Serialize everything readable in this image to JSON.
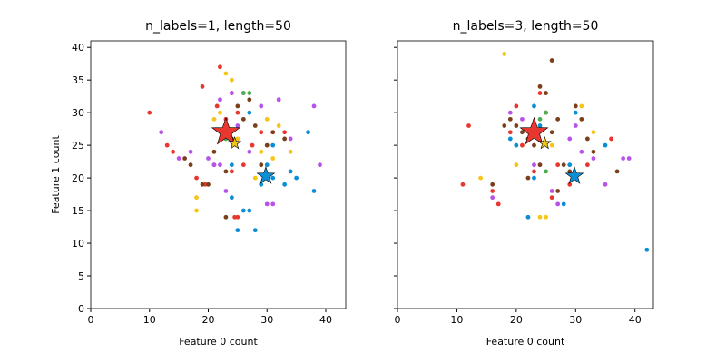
{
  "chart_data": [
    {
      "type": "scatter",
      "title": "n_labels=1, length=50",
      "xlabel": "Feature 0 count",
      "ylabel": "Feature 1 count",
      "xlim": [
        0,
        43.4
      ],
      "ylim": [
        0,
        41
      ],
      "xticks": [
        0,
        10,
        20,
        30,
        40
      ],
      "yticks": [
        0,
        5,
        10,
        15,
        20,
        25,
        30,
        35,
        40
      ],
      "yticklabels": true,
      "series": [
        {
          "color": "#e8372f",
          "marker": "dot",
          "x": [
            22,
            19,
            10,
            13,
            14,
            19.5,
            24,
            26,
            27.5,
            25,
            23,
            21,
            18,
            29,
            31,
            24.5,
            25,
            33,
            21.5,
            24
          ],
          "y": [
            37,
            34,
            30,
            25,
            24,
            19,
            21,
            22,
            25,
            30,
            29,
            22,
            20,
            27,
            27,
            14,
            14,
            27,
            31,
            33
          ]
        },
        {
          "color": "#f5c518",
          "marker": "dot",
          "x": [
            23,
            24,
            18,
            18,
            22,
            30,
            31,
            25,
            34,
            29,
            28,
            32,
            21
          ],
          "y": [
            36,
            35,
            17,
            15,
            30,
            29,
            23,
            26,
            24,
            24,
            20,
            28,
            29
          ]
        },
        {
          "color": "#b753e8",
          "marker": "dot",
          "x": [
            12,
            15,
            17,
            21,
            22,
            26,
            29,
            32,
            38,
            39,
            31,
            27,
            24,
            25,
            20,
            30,
            23,
            22,
            34
          ],
          "y": [
            27,
            23,
            24,
            22,
            32,
            33,
            31,
            32,
            31,
            22,
            16,
            24,
            33,
            28,
            23,
            16,
            18,
            22,
            26
          ]
        },
        {
          "color": "#7b3f1b",
          "marker": "dot",
          "x": [
            16,
            17,
            20,
            23,
            24,
            25,
            27,
            28,
            29,
            33,
            19,
            21,
            26,
            30,
            31,
            23
          ],
          "y": [
            23,
            22,
            19,
            14,
            26,
            31,
            32,
            28,
            22,
            26,
            19,
            24,
            29,
            25,
            27,
            21
          ]
        },
        {
          "color": "#0a8fd6",
          "marker": "dot",
          "x": [
            24,
            25,
            26,
            27,
            28,
            30,
            31,
            33,
            35,
            37,
            38,
            34,
            31,
            29,
            24,
            27
          ],
          "y": [
            17,
            12,
            15,
            15,
            12,
            22,
            25,
            19,
            20,
            27,
            18,
            21,
            20,
            19,
            22,
            30
          ]
        },
        {
          "color": "#4caf50",
          "marker": "dot",
          "x": [
            26,
            27,
            23
          ],
          "y": [
            33,
            33,
            26
          ]
        },
        {
          "color": "#e8372f",
          "marker": "star",
          "marker_size": 16,
          "x": [
            23
          ],
          "y": [
            27
          ]
        },
        {
          "color": "#f5c518",
          "marker": "star",
          "marker_size": 7,
          "x": [
            24.5
          ],
          "y": [
            25.3
          ]
        },
        {
          "color": "#0a8fd6",
          "marker": "star",
          "marker_size": 10,
          "x": [
            29.8
          ],
          "y": [
            20.3
          ]
        }
      ]
    },
    {
      "type": "scatter",
      "title": "n_labels=3, length=50",
      "xlabel": "Feature 0 count",
      "xlim": [
        0,
        43.1
      ],
      "ylim": [
        0,
        41
      ],
      "xticks": [
        0,
        10,
        20,
        30,
        40
      ],
      "yticks": [
        0,
        5,
        10,
        15,
        20,
        25,
        30,
        35,
        40
      ],
      "yticklabels": false,
      "series": [
        {
          "color": "#e8372f",
          "marker": "dot",
          "x": [
            11,
            12,
            16,
            17,
            19,
            21,
            24,
            26,
            27,
            23,
            29,
            32,
            36,
            20,
            25
          ],
          "y": [
            19,
            28,
            18,
            16,
            27,
            25,
            33,
            17,
            22,
            21,
            19,
            22,
            26,
            31,
            30
          ]
        },
        {
          "color": "#f5c518",
          "marker": "dot",
          "x": [
            14,
            18,
            22,
            24,
            25,
            26,
            33,
            20,
            31
          ],
          "y": [
            20,
            39,
            14,
            14,
            14,
            25,
            27,
            22,
            31
          ]
        },
        {
          "color": "#b753e8",
          "marker": "dot",
          "x": [
            16,
            19,
            21,
            23,
            27,
            29,
            33,
            38,
            39,
            30,
            35,
            26,
            31
          ],
          "y": [
            17,
            30,
            29,
            22,
            16,
            26,
            23,
            23,
            23,
            28,
            19,
            18,
            24
          ]
        },
        {
          "color": "#7b3f1b",
          "marker": "dot",
          "x": [
            16,
            19,
            20,
            21,
            22,
            23,
            24,
            25,
            26,
            27,
            28,
            29,
            30,
            31,
            32,
            33,
            37,
            22,
            18,
            26,
            27,
            24
          ],
          "y": [
            19,
            29,
            28,
            27,
            26,
            25,
            34,
            33,
            38,
            29,
            22,
            21,
            31,
            29,
            26,
            24,
            21,
            20,
            28,
            27,
            18,
            22
          ]
        },
        {
          "color": "#0a8fd6",
          "marker": "dot",
          "x": [
            19,
            20,
            22,
            23,
            24,
            28,
            29,
            30,
            35,
            42,
            23
          ],
          "y": [
            26,
            25,
            14,
            20,
            28,
            16,
            22,
            30,
            25,
            9,
            31
          ]
        },
        {
          "color": "#4caf50",
          "marker": "dot",
          "x": [
            24,
            25,
            25
          ],
          "y": [
            29,
            30,
            21
          ]
        },
        {
          "color": "#e8372f",
          "marker": "star",
          "marker_size": 16,
          "x": [
            23
          ],
          "y": [
            27
          ]
        },
        {
          "color": "#f5c518",
          "marker": "star",
          "marker_size": 7,
          "x": [
            24.8
          ],
          "y": [
            25.3
          ]
        },
        {
          "color": "#0a8fd6",
          "marker": "star",
          "marker_size": 10,
          "x": [
            29.8
          ],
          "y": [
            20.3
          ]
        }
      ]
    }
  ]
}
